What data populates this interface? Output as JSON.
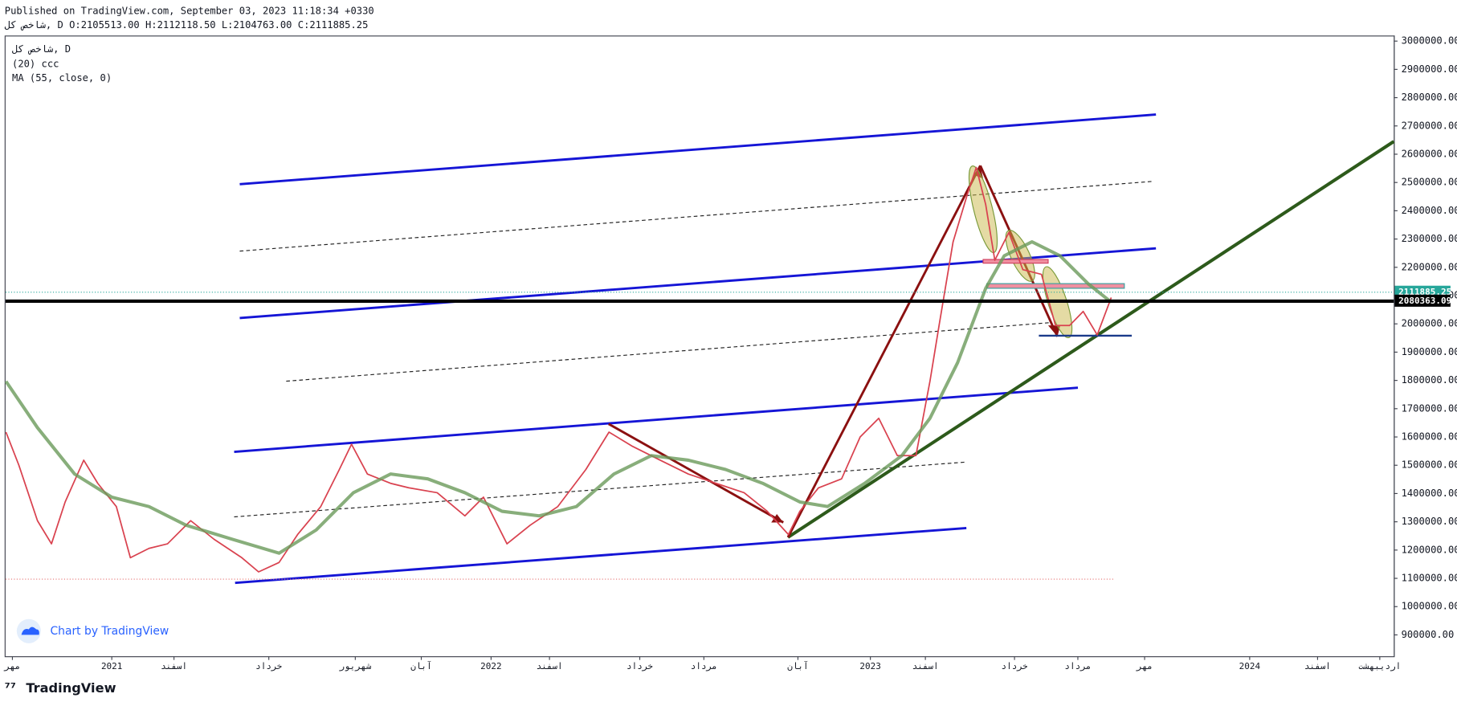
{
  "header": {
    "published": "Published on TradingView.com, September 03, 2023 11:18:34 +0330",
    "ohlc_line": "شاخص کل, D O:2105513.00 H:2112118.50 L:2104763.00 C:2111885.25"
  },
  "legend_extra": "(20) ccc",
  "watermark": "Chart by TradingView",
  "footer_logo": "TradingView",
  "chart_data": {
    "type": "line",
    "series": [
      {
        "name": "شاخص کل, D",
        "color": "#d9424f",
        "x": [
          2020.721,
          2020.755,
          2020.804,
          2020.841,
          2020.877,
          2020.926,
          2020.963,
          2021.012,
          2021.049,
          2021.098,
          2021.147,
          2021.208,
          2021.27,
          2021.343,
          2021.387,
          2021.441,
          2021.49,
          2021.551,
          2021.6,
          2021.632,
          2021.674,
          2021.735,
          2021.784,
          2021.858,
          2021.931,
          2021.98,
          2022.042,
          2022.103,
          2022.176,
          2022.25,
          2022.311,
          2022.373,
          2022.446,
          2022.52,
          2022.593,
          2022.667,
          2022.728,
          2022.784,
          2022.814,
          2022.863,
          2022.924,
          2022.973,
          2023.022,
          2023.071,
          2023.12,
          2023.157,
          2023.181,
          2023.218,
          2023.255,
          2023.279,
          2023.304,
          2023.328,
          2023.365,
          2023.402,
          2023.451,
          2023.488,
          2023.525,
          2023.561,
          2023.598,
          2023.635
        ],
        "values": [
          1617000,
          1500000,
          1304000,
          1222000,
          1370000,
          1518000,
          1436000,
          1354000,
          1173000,
          1206000,
          1222000,
          1304000,
          1238000,
          1173000,
          1123000,
          1156000,
          1255000,
          1354000,
          1485000,
          1574000,
          1469000,
          1436000,
          1420000,
          1403000,
          1321000,
          1387000,
          1222000,
          1288000,
          1354000,
          1485000,
          1617000,
          1567000,
          1518000,
          1469000,
          1436000,
          1403000,
          1337000,
          1255000,
          1337000,
          1420000,
          1452000,
          1600000,
          1666000,
          1534000,
          1534000,
          1797000,
          1994000,
          2290000,
          2455000,
          2553000,
          2422000,
          2225000,
          2323000,
          2192000,
          2175000,
          1994000,
          1994000,
          2044000,
          1961000,
          2093000
        ]
      },
      {
        "name": "MA (55, close, 0)",
        "color": "#6a9a5a",
        "x": [
          2020.721,
          2020.804,
          2020.902,
          2021.0,
          2021.098,
          2021.196,
          2021.319,
          2021.441,
          2021.539,
          2021.637,
          2021.735,
          2021.833,
          2021.931,
          2022.029,
          2022.127,
          2022.225,
          2022.324,
          2022.422,
          2022.52,
          2022.618,
          2022.716,
          2022.814,
          2022.887,
          2022.985,
          2023.083,
          2023.157,
          2023.23,
          2023.304,
          2023.353,
          2023.426,
          2023.5,
          2023.574,
          2023.635
        ],
        "values": [
          1797000,
          1633000,
          1469000,
          1387000,
          1354000,
          1288000,
          1238000,
          1189000,
          1271000,
          1403000,
          1469000,
          1452000,
          1403000,
          1337000,
          1321000,
          1354000,
          1469000,
          1534000,
          1518000,
          1485000,
          1436000,
          1370000,
          1354000,
          1436000,
          1534000,
          1666000,
          1863000,
          2126000,
          2241000,
          2290000,
          2241000,
          2142000,
          2077000
        ]
      }
    ],
    "last_price": 2111885.25,
    "horizontal_line": 2080363.09,
    "xlim": [
      2020.72,
      2024.38
    ],
    "xticks": [
      {
        "value": 2020.738,
        "label": "مهر"
      },
      2021,
      {
        "value": 2021.164,
        "label": "اسفند"
      },
      {
        "value": 2021.414,
        "label": "خرداد"
      },
      {
        "value": 2021.642,
        "label": "شهریور"
      },
      {
        "value": 2021.816,
        "label": "آبان"
      },
      2022,
      {
        "value": 2022.154,
        "label": "اسفند"
      },
      {
        "value": 2022.392,
        "label": "خرداد"
      },
      {
        "value": 2022.561,
        "label": "مرداد"
      },
      {
        "value": 2022.809,
        "label": "آبان"
      },
      2023,
      {
        "value": 2023.145,
        "label": "اسفند"
      },
      {
        "value": 2023.38,
        "label": "خرداد"
      },
      {
        "value": 2023.547,
        "label": "مرداد"
      },
      {
        "value": 2023.723,
        "label": "مهر"
      },
      2024,
      {
        "value": 2024.179,
        "label": "اسفند"
      },
      {
        "value": 2024.343,
        "label": "اردیبهشت"
      }
    ],
    "ylim": [
      824500,
      3019700
    ],
    "yticks": [
      {
        "value": 900000,
        "label": "900000.00"
      },
      {
        "value": 1000000,
        "label": "1000000.00"
      },
      {
        "value": 1100000,
        "label": "1100000.00"
      },
      {
        "value": 1200000,
        "label": "1200000.00"
      },
      {
        "value": 1300000,
        "label": "1300000.00"
      },
      {
        "value": 1400000,
        "label": "1400000.00"
      },
      {
        "value": 1500000,
        "label": "1500000.00"
      },
      {
        "value": 1600000,
        "label": "1600000.00"
      },
      {
        "value": 1700000,
        "label": "1700000.00"
      },
      {
        "value": 1800000,
        "label": "1800000.00"
      },
      {
        "value": 1900000,
        "label": "1900000.00"
      },
      {
        "value": 2000000,
        "label": "2000000.00"
      },
      {
        "value": 2100000,
        "label": "2100000.00"
      },
      {
        "value": 2200000,
        "label": "2200000.00"
      },
      {
        "value": 2300000,
        "label": "2300000.00"
      },
      {
        "value": 2400000,
        "label": "2400000.00"
      },
      {
        "value": 2500000,
        "label": "2500000.00"
      },
      {
        "value": 2600000,
        "label": "2600000.00"
      },
      {
        "value": 2700000,
        "label": "2700000.00"
      },
      {
        "value": 2800000,
        "label": "2800000.00"
      },
      {
        "value": 2900000,
        "label": "2900000.00"
      },
      {
        "value": 3000000,
        "label": "3000000.00"
      }
    ],
    "grid": false
  }
}
